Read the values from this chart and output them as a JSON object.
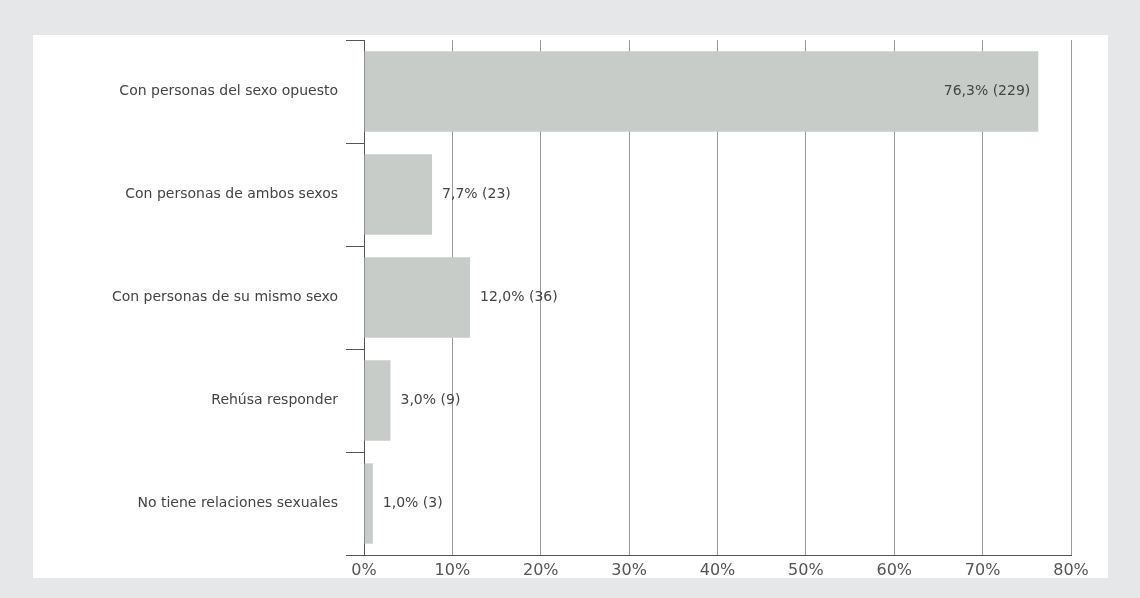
{
  "chart_data": {
    "type": "bar",
    "orientation": "horizontal",
    "categories": [
      "Con personas del sexo opuesto",
      "Con personas de ambos sexos",
      "Con personas de su mismo sexo",
      "Rehúsa responder",
      "No tiene relaciones sexuales"
    ],
    "values": [
      76.3,
      7.7,
      12.0,
      3.0,
      1.0
    ],
    "value_labels": [
      "76,3% (229)",
      "7,7% (23)",
      "12,0% (36)",
      "3,0% (9)",
      "1,0% (3)"
    ],
    "color": "#c8ccc8",
    "xlim": [
      0,
      80
    ],
    "xticks": [
      {
        "value": 0,
        "label": "0%"
      },
      {
        "value": 10,
        "label": "10%"
      },
      {
        "value": 20,
        "label": "20%"
      },
      {
        "value": 30,
        "label": "30%"
      },
      {
        "value": 40,
        "label": "40%"
      },
      {
        "value": 50,
        "label": "50%"
      },
      {
        "value": 60,
        "label": "60%"
      },
      {
        "value": 70,
        "label": "70%"
      },
      {
        "value": 80,
        "label": "80%"
      }
    ],
    "grid": "x",
    "legend": false
  }
}
